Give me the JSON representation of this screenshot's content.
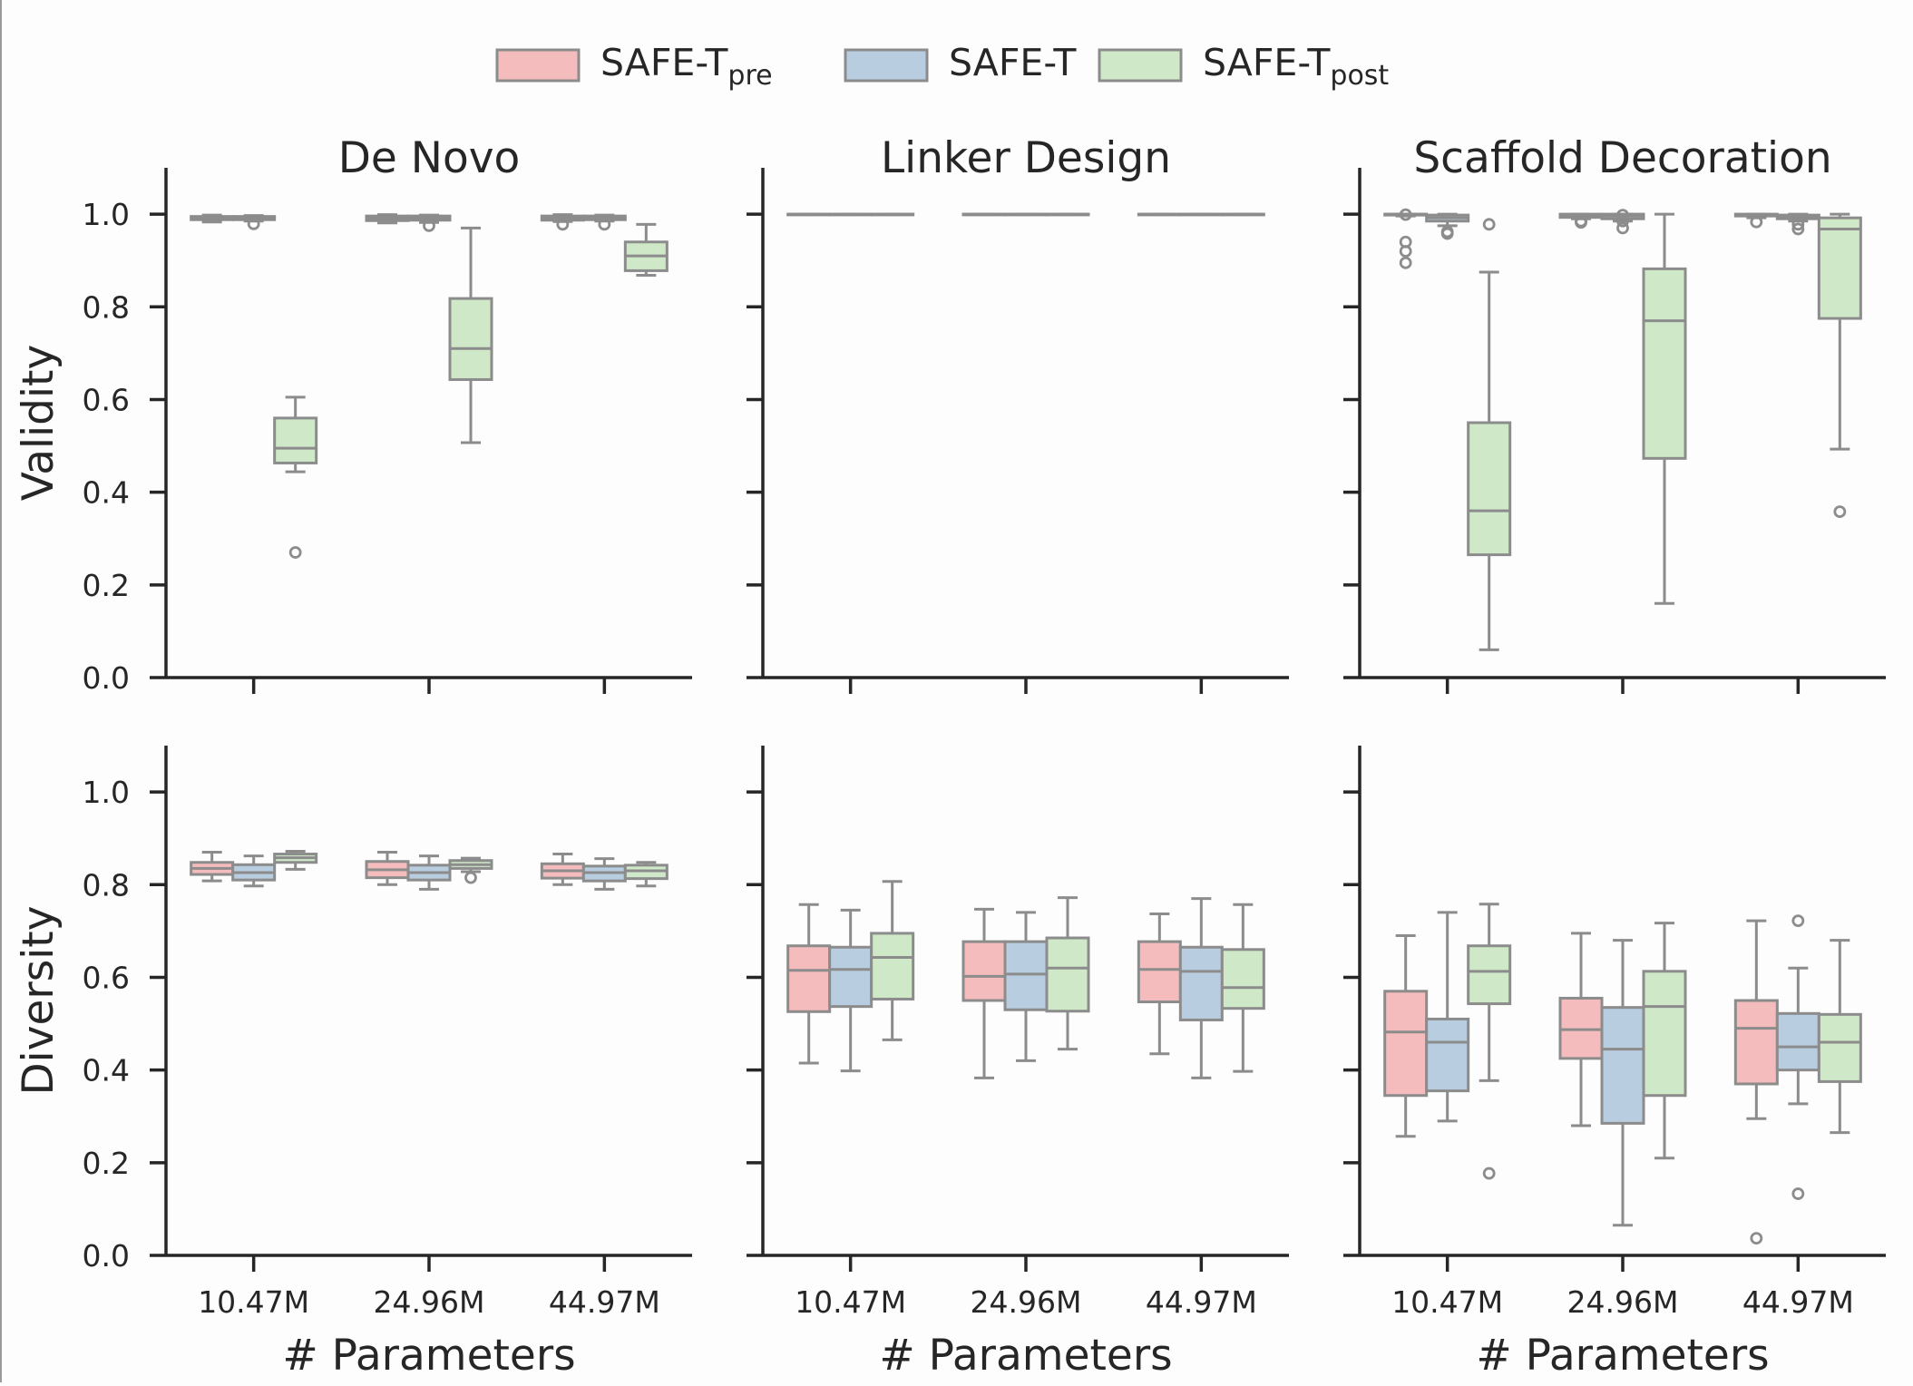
{
  "legend": {
    "placement": "top-center",
    "items": [
      {
        "key": "pre",
        "base": "SAFE-T",
        "sub": "pre",
        "color": "#f4bcbc"
      },
      {
        "key": "mid",
        "base": "SAFE-T",
        "sub": "",
        "color": "#b8cde0"
      },
      {
        "key": "post",
        "base": "SAFE-T",
        "sub": "post",
        "color": "#cfe8c8"
      }
    ]
  },
  "colors": {
    "box_edge": "#8c8c8c",
    "axis": "#262626",
    "text": "#262626"
  },
  "chart_data": {
    "type": "box",
    "x_label": "# Parameters",
    "categories": [
      "10.47M",
      "24.96M",
      "44.97M"
    ],
    "series_keys": [
      "pre",
      "mid",
      "post"
    ],
    "ylim": [
      0,
      1.1
    ],
    "y_ticks": [
      "0.0",
      "0.2",
      "0.4",
      "0.6",
      "0.8",
      "1.0"
    ],
    "grid": false,
    "columns": [
      "De Novo",
      "Linker Design",
      "Scaffold Decoration"
    ],
    "rows": [
      "Validity",
      "Diversity"
    ],
    "panels": [
      {
        "row": "Validity",
        "title": "De Novo",
        "boxes": [
          [
            {
              "q1": 0.988,
              "med": 0.992,
              "q3": 0.995,
              "lo": 0.983,
              "hi": 0.998,
              "fl": []
            },
            {
              "q1": 0.988,
              "med": 0.992,
              "q3": 0.995,
              "lo": 0.985,
              "hi": 0.997,
              "fl": [
                0.979
              ]
            },
            {
              "q1": 0.463,
              "med": 0.495,
              "q3": 0.56,
              "lo": 0.444,
              "hi": 0.605,
              "fl": [
                0.27
              ]
            }
          ],
          [
            {
              "q1": 0.986,
              "med": 0.991,
              "q3": 0.996,
              "lo": 0.981,
              "hi": 0.999,
              "fl": []
            },
            {
              "q1": 0.987,
              "med": 0.992,
              "q3": 0.996,
              "lo": 0.982,
              "hi": 0.998,
              "fl": [
                0.975
              ]
            },
            {
              "q1": 0.643,
              "med": 0.71,
              "q3": 0.818,
              "lo": 0.507,
              "hi": 0.97,
              "fl": []
            }
          ],
          [
            {
              "q1": 0.987,
              "med": 0.992,
              "q3": 0.996,
              "lo": 0.984,
              "hi": 0.999,
              "fl": [
                0.978
              ]
            },
            {
              "q1": 0.988,
              "med": 0.993,
              "q3": 0.996,
              "lo": 0.985,
              "hi": 0.998,
              "fl": [
                0.978
              ]
            },
            {
              "q1": 0.878,
              "med": 0.91,
              "q3": 0.94,
              "lo": 0.868,
              "hi": 0.978,
              "fl": []
            }
          ]
        ]
      },
      {
        "row": "Validity",
        "title": "Linker Design",
        "boxes": [
          [
            {
              "q1": 0.999,
              "med": 1.0,
              "q3": 1.0,
              "lo": 0.999,
              "hi": 1.0,
              "fl": []
            },
            {
              "q1": 0.999,
              "med": 1.0,
              "q3": 1.0,
              "lo": 0.999,
              "hi": 1.0,
              "fl": []
            },
            {
              "q1": 0.999,
              "med": 1.0,
              "q3": 1.0,
              "lo": 0.999,
              "hi": 1.0,
              "fl": []
            }
          ],
          [
            {
              "q1": 0.999,
              "med": 1.0,
              "q3": 1.0,
              "lo": 0.999,
              "hi": 1.0,
              "fl": []
            },
            {
              "q1": 0.999,
              "med": 1.0,
              "q3": 1.0,
              "lo": 0.999,
              "hi": 1.0,
              "fl": []
            },
            {
              "q1": 0.999,
              "med": 1.0,
              "q3": 1.0,
              "lo": 0.999,
              "hi": 1.0,
              "fl": []
            }
          ],
          [
            {
              "q1": 0.999,
              "med": 1.0,
              "q3": 1.0,
              "lo": 0.999,
              "hi": 1.0,
              "fl": []
            },
            {
              "q1": 0.999,
              "med": 1.0,
              "q3": 1.0,
              "lo": 0.999,
              "hi": 1.0,
              "fl": []
            },
            {
              "q1": 0.999,
              "med": 1.0,
              "q3": 1.0,
              "lo": 0.999,
              "hi": 1.0,
              "fl": []
            }
          ]
        ]
      },
      {
        "row": "Validity",
        "title": "Scaffold Decoration",
        "boxes": [
          [
            {
              "q1": 0.998,
              "med": 1.0,
              "q3": 1.0,
              "lo": 0.996,
              "hi": 1.0,
              "fl": [
                0.999,
                0.94,
                0.92,
                0.895
              ]
            },
            {
              "q1": 0.985,
              "med": 0.992,
              "q3": 0.998,
              "lo": 0.975,
              "hi": 1.0,
              "fl": [
                0.962,
                0.958
              ]
            },
            {
              "q1": 0.265,
              "med": 0.36,
              "q3": 0.55,
              "lo": 0.06,
              "hi": 0.875,
              "fl": [
                0.978
              ]
            }
          ],
          [
            {
              "q1": 0.993,
              "med": 0.997,
              "q3": 1.0,
              "lo": 0.99,
              "hi": 1.0,
              "fl": [
                0.985,
                0.982
              ]
            },
            {
              "q1": 0.99,
              "med": 0.996,
              "q3": 1.0,
              "lo": 0.985,
              "hi": 1.0,
              "fl": [
                0.998,
                0.985,
                0.97
              ]
            },
            {
              "q1": 0.473,
              "med": 0.77,
              "q3": 0.882,
              "lo": 0.16,
              "hi": 1.0,
              "fl": []
            }
          ],
          [
            {
              "q1": 0.996,
              "med": 0.999,
              "q3": 1.0,
              "lo": 0.992,
              "hi": 1.0,
              "fl": [
                0.983
              ]
            },
            {
              "q1": 0.99,
              "med": 0.995,
              "q3": 0.998,
              "lo": 0.985,
              "hi": 1.0,
              "fl": [
                0.978,
                0.968
              ]
            },
            {
              "q1": 0.775,
              "med": 0.968,
              "q3": 0.992,
              "lo": 0.493,
              "hi": 1.0,
              "fl": [
                0.358
              ]
            }
          ]
        ]
      },
      {
        "row": "Diversity",
        "title": "De Novo",
        "boxes": [
          [
            {
              "q1": 0.822,
              "med": 0.835,
              "q3": 0.848,
              "lo": 0.808,
              "hi": 0.87,
              "fl": []
            },
            {
              "q1": 0.81,
              "med": 0.826,
              "q3": 0.843,
              "lo": 0.797,
              "hi": 0.862,
              "fl": []
            },
            {
              "q1": 0.848,
              "med": 0.858,
              "q3": 0.866,
              "lo": 0.833,
              "hi": 0.872,
              "fl": []
            }
          ],
          [
            {
              "q1": 0.815,
              "med": 0.832,
              "q3": 0.85,
              "lo": 0.8,
              "hi": 0.87,
              "fl": []
            },
            {
              "q1": 0.81,
              "med": 0.826,
              "q3": 0.842,
              "lo": 0.79,
              "hi": 0.862,
              "fl": []
            },
            {
              "q1": 0.835,
              "med": 0.843,
              "q3": 0.852,
              "lo": 0.828,
              "hi": 0.857,
              "fl": [
                0.815
              ]
            }
          ],
          [
            {
              "q1": 0.814,
              "med": 0.83,
              "q3": 0.845,
              "lo": 0.8,
              "hi": 0.866,
              "fl": []
            },
            {
              "q1": 0.808,
              "med": 0.826,
              "q3": 0.84,
              "lo": 0.79,
              "hi": 0.856,
              "fl": []
            },
            {
              "q1": 0.813,
              "med": 0.83,
              "q3": 0.842,
              "lo": 0.797,
              "hi": 0.848,
              "fl": []
            }
          ]
        ]
      },
      {
        "row": "Diversity",
        "title": "Linker Design",
        "boxes": [
          [
            {
              "q1": 0.526,
              "med": 0.615,
              "q3": 0.668,
              "lo": 0.415,
              "hi": 0.757,
              "fl": []
            },
            {
              "q1": 0.537,
              "med": 0.617,
              "q3": 0.665,
              "lo": 0.398,
              "hi": 0.745,
              "fl": []
            },
            {
              "q1": 0.553,
              "med": 0.643,
              "q3": 0.695,
              "lo": 0.465,
              "hi": 0.807,
              "fl": []
            }
          ],
          [
            {
              "q1": 0.55,
              "med": 0.602,
              "q3": 0.677,
              "lo": 0.383,
              "hi": 0.747,
              "fl": []
            },
            {
              "q1": 0.53,
              "med": 0.607,
              "q3": 0.677,
              "lo": 0.42,
              "hi": 0.74,
              "fl": []
            },
            {
              "q1": 0.527,
              "med": 0.62,
              "q3": 0.685,
              "lo": 0.445,
              "hi": 0.772,
              "fl": []
            }
          ],
          [
            {
              "q1": 0.547,
              "med": 0.617,
              "q3": 0.677,
              "lo": 0.435,
              "hi": 0.737,
              "fl": []
            },
            {
              "q1": 0.508,
              "med": 0.613,
              "q3": 0.665,
              "lo": 0.383,
              "hi": 0.77,
              "fl": []
            },
            {
              "q1": 0.533,
              "med": 0.578,
              "q3": 0.66,
              "lo": 0.397,
              "hi": 0.757,
              "fl": []
            }
          ]
        ]
      },
      {
        "row": "Diversity",
        "title": "Scaffold Decoration",
        "boxes": [
          [
            {
              "q1": 0.345,
              "med": 0.482,
              "q3": 0.57,
              "lo": 0.257,
              "hi": 0.69,
              "fl": []
            },
            {
              "q1": 0.355,
              "med": 0.46,
              "q3": 0.51,
              "lo": 0.29,
              "hi": 0.74,
              "fl": []
            },
            {
              "q1": 0.543,
              "med": 0.613,
              "q3": 0.668,
              "lo": 0.377,
              "hi": 0.758,
              "fl": [
                0.177
              ]
            }
          ],
          [
            {
              "q1": 0.425,
              "med": 0.487,
              "q3": 0.555,
              "lo": 0.28,
              "hi": 0.695,
              "fl": []
            },
            {
              "q1": 0.285,
              "med": 0.445,
              "q3": 0.535,
              "lo": 0.065,
              "hi": 0.68,
              "fl": []
            },
            {
              "q1": 0.345,
              "med": 0.537,
              "q3": 0.613,
              "lo": 0.21,
              "hi": 0.717,
              "fl": []
            }
          ],
          [
            {
              "q1": 0.37,
              "med": 0.49,
              "q3": 0.55,
              "lo": 0.295,
              "hi": 0.722,
              "fl": [
                0.037
              ]
            },
            {
              "q1": 0.4,
              "med": 0.45,
              "q3": 0.522,
              "lo": 0.327,
              "hi": 0.62,
              "fl": [
                0.722,
                0.133
              ]
            },
            {
              "q1": 0.375,
              "med": 0.46,
              "q3": 0.52,
              "lo": 0.265,
              "hi": 0.68,
              "fl": []
            }
          ]
        ]
      }
    ]
  }
}
